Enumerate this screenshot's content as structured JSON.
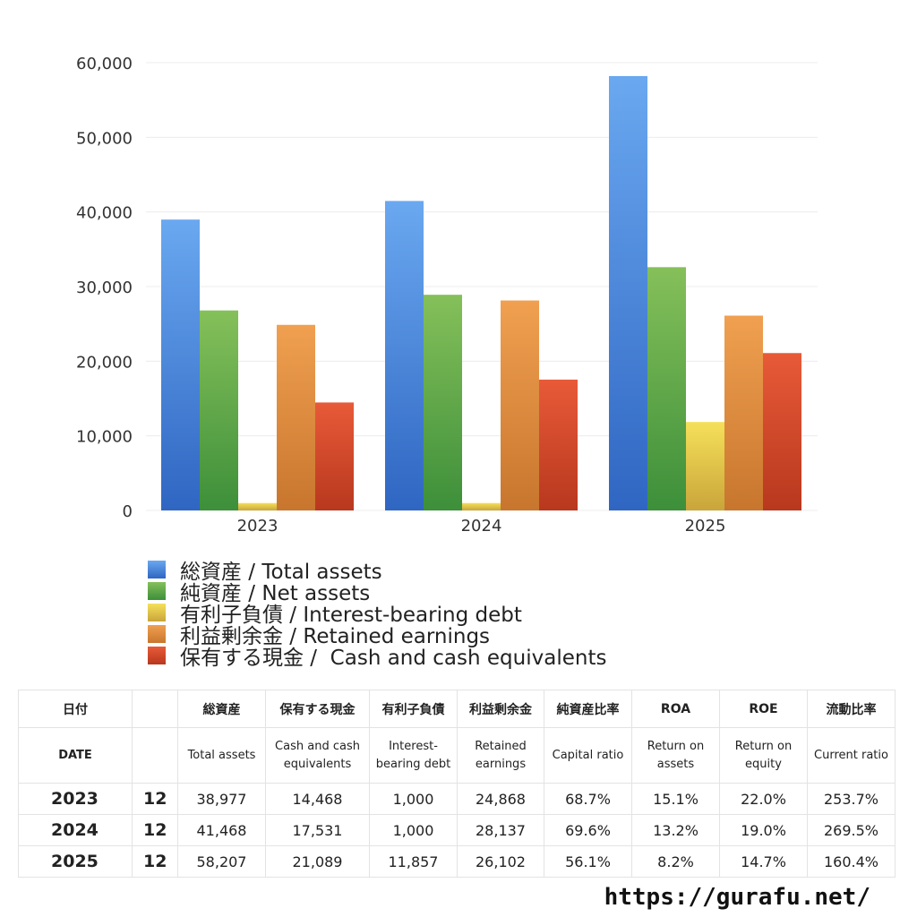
{
  "chart_data": {
    "type": "bar",
    "categories": [
      "2023",
      "2024",
      "2025"
    ],
    "ylim": [
      0,
      60000
    ],
    "yticks": [
      "0",
      "10,000",
      "20,000",
      "30,000",
      "40,000",
      "50,000",
      "60,000"
    ],
    "ytick_values": [
      0,
      10000,
      20000,
      30000,
      40000,
      50000,
      60000
    ],
    "grid": true,
    "legend_position": "bottom",
    "series": [
      {
        "name": "総資産 / Total assets",
        "values": [
          38977,
          41468,
          58207
        ],
        "color_top": "#6aa8f0",
        "color_bottom": "#2f66c2"
      },
      {
        "name": "純資産 / Net assets",
        "values": [
          26800,
          28900,
          32600
        ],
        "color_top": "#85c05a",
        "color_bottom": "#3d8f3a"
      },
      {
        "name": "有利子負債 / Interest-bearing debt",
        "values": [
          1000,
          1000,
          11857
        ],
        "color_top": "#f5e05a",
        "color_bottom": "#c9a53a"
      },
      {
        "name": "利益剰余金 / Retained earnings",
        "values": [
          24868,
          28137,
          26102
        ],
        "color_top": "#f0a050",
        "color_bottom": "#c8762e"
      },
      {
        "name": "保有する現金 /  Cash and cash equivalents",
        "values": [
          14468,
          17531,
          21089
        ],
        "color_top": "#e85a38",
        "color_bottom": "#b8381e"
      }
    ]
  },
  "table": {
    "header_jp": [
      "日付",
      "",
      "総資産",
      "保有する現金",
      "有利子負債",
      "利益剰余金",
      "純資産比率",
      "ROA",
      "ROE",
      "流動比率"
    ],
    "header_en": [
      "DATE",
      "",
      "Total assets",
      "Cash and cash equivalents",
      "Interest-bearing debt",
      "Retained earnings",
      "Capital ratio",
      "Return on assets",
      "Return on equity",
      "Current ratio"
    ],
    "rows": [
      {
        "year": "2023",
        "month": "12",
        "total_assets": "38,977",
        "cash": "14,468",
        "debt": "1,000",
        "retained": "24,868",
        "capital_ratio": "68.7%",
        "roa": "15.1%",
        "roe": "22.0%",
        "current_ratio": "253.7%"
      },
      {
        "year": "2024",
        "month": "12",
        "total_assets": "41,468",
        "cash": "17,531",
        "debt": "1,000",
        "retained": "28,137",
        "capital_ratio": "69.6%",
        "roa": "13.2%",
        "roe": "19.0%",
        "current_ratio": "269.5%"
      },
      {
        "year": "2025",
        "month": "12",
        "total_assets": "58,207",
        "cash": "21,089",
        "debt": "11,857",
        "retained": "26,102",
        "capital_ratio": "56.1%",
        "roa": "8.2%",
        "roe": "14.7%",
        "current_ratio": "160.4%"
      }
    ]
  },
  "footer": {
    "url": "https://gurafu.net/"
  }
}
